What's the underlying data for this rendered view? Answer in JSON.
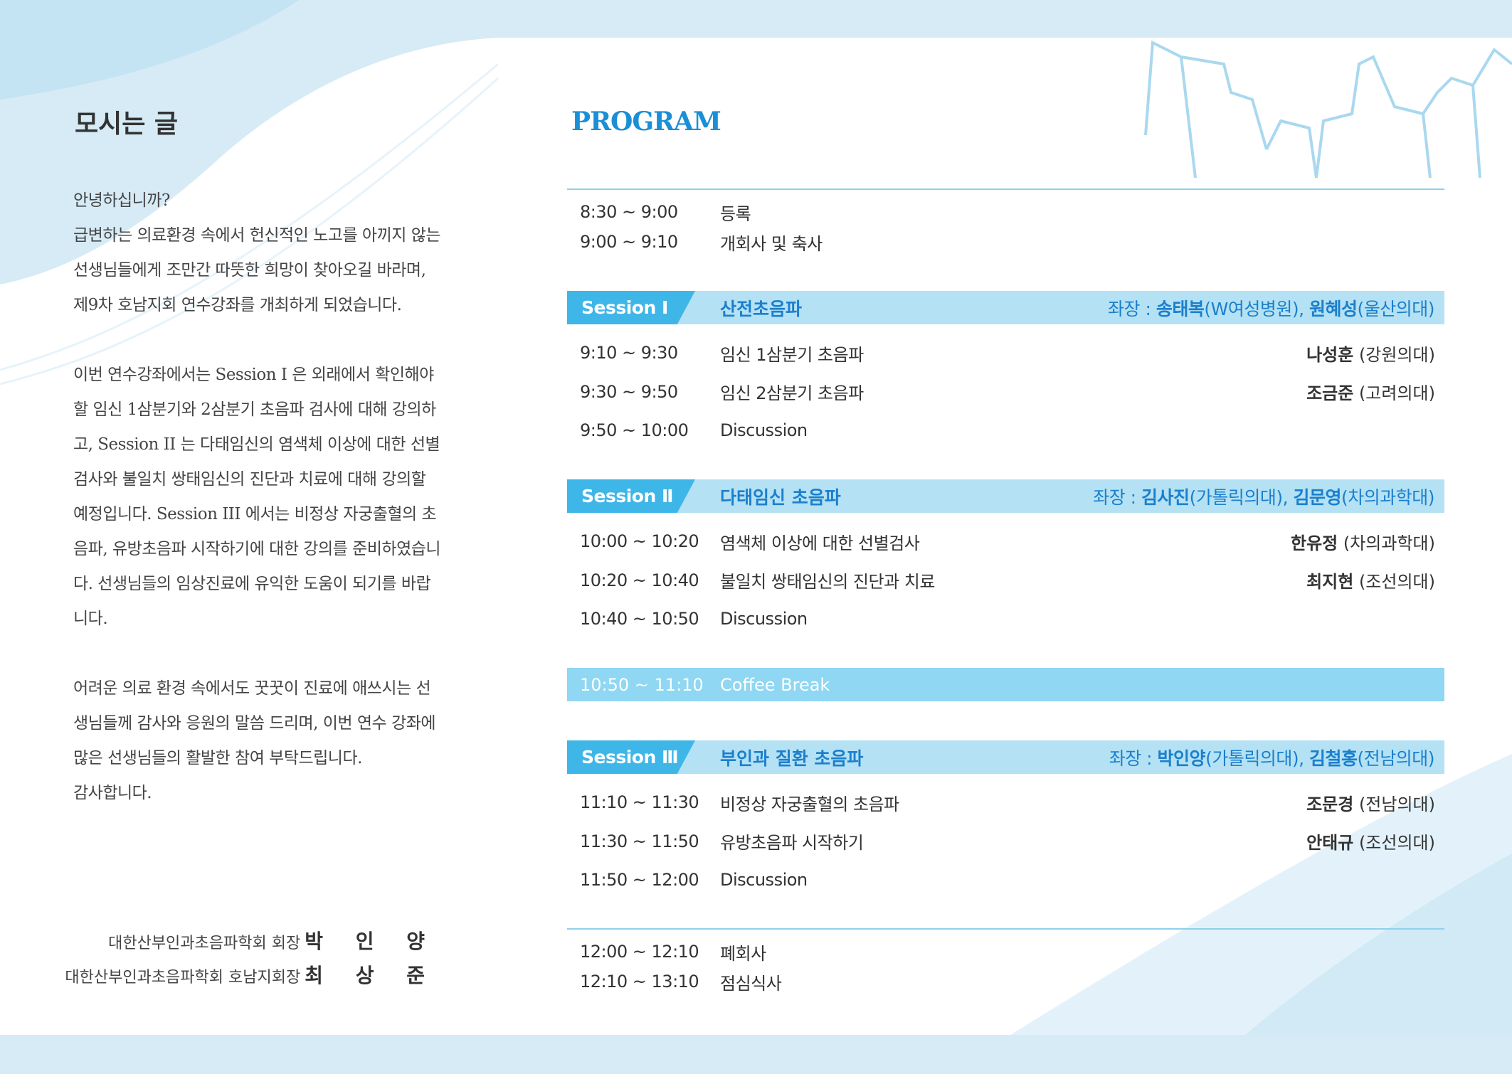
{
  "left": {
    "title": "모시는 글",
    "paragraphs": [
      "안녕하십니까?\n급변하는 의료환경 속에서 헌신적인 노고를 아끼지 않는 선생님들에게 조만간 따뜻한 희망이 찾아오길 바라며, 제9차 호남지회 연수강좌를 개최하게 되었습니다.",
      "이번 연수강좌에서는 Session I 은 외래에서 확인해야 할 임신 1삼분기와 2삼분기 초음파 검사에 대해 강의하고, Session II 는 다태임신의 염색체 이상에 대한 선별검사와 불일치 쌍태임신의 진단과 치료에 대해 강의할 예정입니다. Session III 에서는 비정상 자궁출혈의 초음파, 유방초음파 시작하기에 대한 강의를 준비하였습니다. 선생님들의 임상진료에 유익한 도움이 되기를 바랍니다.",
      "어려운 의료 환경 속에서도 꿋꿋이 진료에 애쓰시는 선생님들께 감사와 응원의 말씀 드리며, 이번 연수 강좌에 많은 선생님들의 활발한 참여 부탁드립니다.\n감사합니다."
    ],
    "signatures": [
      {
        "role": "대한산부인과초음파학회 회장",
        "name": "박 인 양"
      },
      {
        "role": "대한산부인과초음파학회 호남지회장",
        "name": "최 상 준"
      }
    ]
  },
  "program": {
    "title": "PROGRAM",
    "opening": [
      {
        "time": "8:30 ~ 9:00",
        "topic": "등록"
      },
      {
        "time": "9:00 ~ 9:10",
        "topic": "개회사 및 축사"
      }
    ],
    "sessions": [
      {
        "label": "Session Ⅰ",
        "topic": "산전초음파",
        "chair_label": "좌장 : ",
        "chair1": "송태복",
        "chair1_aff": "(W여성병원), ",
        "chair2": "원혜성",
        "chair2_aff": "(울산의대)",
        "talks": [
          {
            "time": "9:10 ~ 9:30",
            "topic": "임신 1삼분기 초음파",
            "speaker": "나성훈",
            "aff": " (강원의대)"
          },
          {
            "time": "9:30 ~ 9:50",
            "topic": "임신 2삼분기 초음파",
            "speaker": "조금준",
            "aff": " (고려의대)"
          },
          {
            "time": "9:50 ~ 10:00",
            "topic": "Discussion",
            "speaker": "",
            "aff": ""
          }
        ]
      },
      {
        "label": "Session Ⅱ",
        "topic": "다태임신 초음파",
        "chair_label": "좌장 : ",
        "chair1": "김사진",
        "chair1_aff": "(가톨릭의대), ",
        "chair2": "김문영",
        "chair2_aff": "(차의과학대)",
        "talks": [
          {
            "time": "10:00 ~ 10:20",
            "topic": "염색체 이상에 대한 선별검사",
            "speaker": "한유정",
            "aff": " (차의과학대)"
          },
          {
            "time": "10:20 ~ 10:40",
            "topic": "불일치 쌍태임신의 진단과 치료",
            "speaker": "최지현",
            "aff": " (조선의대)"
          },
          {
            "time": "10:40 ~ 10:50",
            "topic": "Discussion",
            "speaker": "",
            "aff": ""
          }
        ]
      },
      {
        "label": "Session Ⅲ",
        "topic": "부인과 질환  초음파",
        "chair_label": "좌장 : ",
        "chair1": "박인양",
        "chair1_aff": "(가톨릭의대), ",
        "chair2": "김철홍",
        "chair2_aff": "(전남의대)",
        "talks": [
          {
            "time": "11:10 ~ 11:30",
            "topic": "비정상 자궁출혈의 초음파",
            "speaker": "조문경",
            "aff": " (전남의대)"
          },
          {
            "time": "11:30 ~ 11:50",
            "topic": "유방초음파 시작하기",
            "speaker": "안태규",
            "aff": " (조선의대)"
          },
          {
            "time": "11:50 ~ 12:00",
            "topic": "Discussion",
            "speaker": "",
            "aff": ""
          }
        ]
      }
    ],
    "coffee": {
      "time": "10:50 ~ 11:10",
      "topic": "Coffee Break"
    },
    "closing": [
      {
        "time": "12:00 ~ 12:10",
        "topic": "폐회사"
      },
      {
        "time": "12:10 ~ 13:10",
        "topic": "점심식사"
      }
    ]
  },
  "colors": {
    "accent": "#1a8fd6",
    "session_label": "#3fb6e8",
    "session_bar": "#b4e2f4",
    "coffee_bar": "#8fd7f2",
    "background_band": "#d6ebf6"
  }
}
